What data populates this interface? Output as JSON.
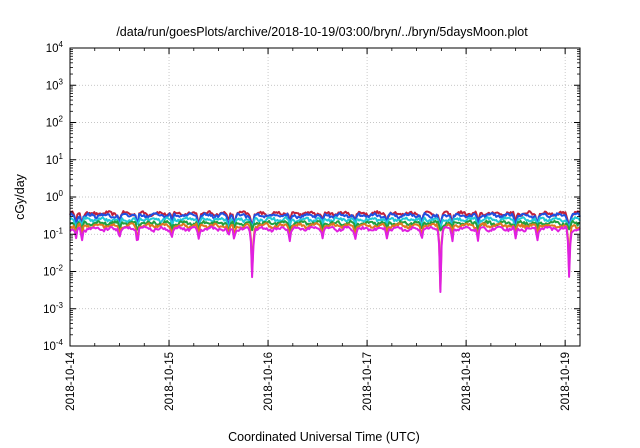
{
  "chart_data": {
    "type": "line",
    "title": "/data/run/goesPlots/archive/2018-10-19/03:00/bryn/../bryn/5daysMoon.plot",
    "xlabel": "Coordinated Universal Time (UTC)",
    "ylabel": "cGy/day",
    "x_ticks": [
      "2018-10-14",
      "2018-10-15",
      "2018-10-16",
      "2018-10-17",
      "2018-10-18",
      "2018-10-19"
    ],
    "xlim_days": [
      0,
      5.15
    ],
    "y_scale": "log",
    "ylim": [
      0.0001,
      10000
    ],
    "y_ticks": [
      {
        "base": "10",
        "exp": "-4"
      },
      {
        "base": "10",
        "exp": "-3"
      },
      {
        "base": "10",
        "exp": "-2"
      },
      {
        "base": "10",
        "exp": "-1"
      },
      {
        "base": "10",
        "exp": "0"
      },
      {
        "base": "10",
        "exp": "1"
      },
      {
        "base": "10",
        "exp": "2"
      },
      {
        "base": "10",
        "exp": "3"
      },
      {
        "base": "10",
        "exp": "4"
      }
    ],
    "grid": true,
    "legend": "none",
    "series": [
      {
        "color": "#c0203a",
        "baseline": 0.36
      },
      {
        "color": "#2050e0",
        "baseline": 0.32
      },
      {
        "color": "#20c8d8",
        "baseline": 0.25
      },
      {
        "color": "#20a040",
        "baseline": 0.2
      },
      {
        "color": "#e07820",
        "baseline": 0.17
      },
      {
        "color": "#e020e0",
        "baseline": 0.14
      }
    ],
    "dips": [
      {
        "x": 0.06,
        "factor": 0.5
      },
      {
        "x": 0.12,
        "factor": 0.45
      },
      {
        "x": 0.5,
        "factor": 0.6
      },
      {
        "x": 0.68,
        "factor": 0.45
      },
      {
        "x": 1.03,
        "factor": 0.6
      },
      {
        "x": 1.3,
        "factor": 0.5
      },
      {
        "x": 1.6,
        "factor": 0.55
      },
      {
        "x": 1.66,
        "factor": 0.55
      },
      {
        "x": 1.84,
        "factor": 0.05
      },
      {
        "x": 2.22,
        "factor": 0.5
      },
      {
        "x": 2.55,
        "factor": 0.6
      },
      {
        "x": 2.88,
        "factor": 0.6
      },
      {
        "x": 3.2,
        "factor": 0.6
      },
      {
        "x": 3.55,
        "factor": 0.6
      },
      {
        "x": 3.74,
        "factor": 0.02
      },
      {
        "x": 3.86,
        "factor": 0.5
      },
      {
        "x": 4.12,
        "factor": 0.45
      },
      {
        "x": 4.5,
        "factor": 0.5
      },
      {
        "x": 4.72,
        "factor": 0.5
      },
      {
        "x": 5.04,
        "factor": 0.055
      }
    ]
  }
}
